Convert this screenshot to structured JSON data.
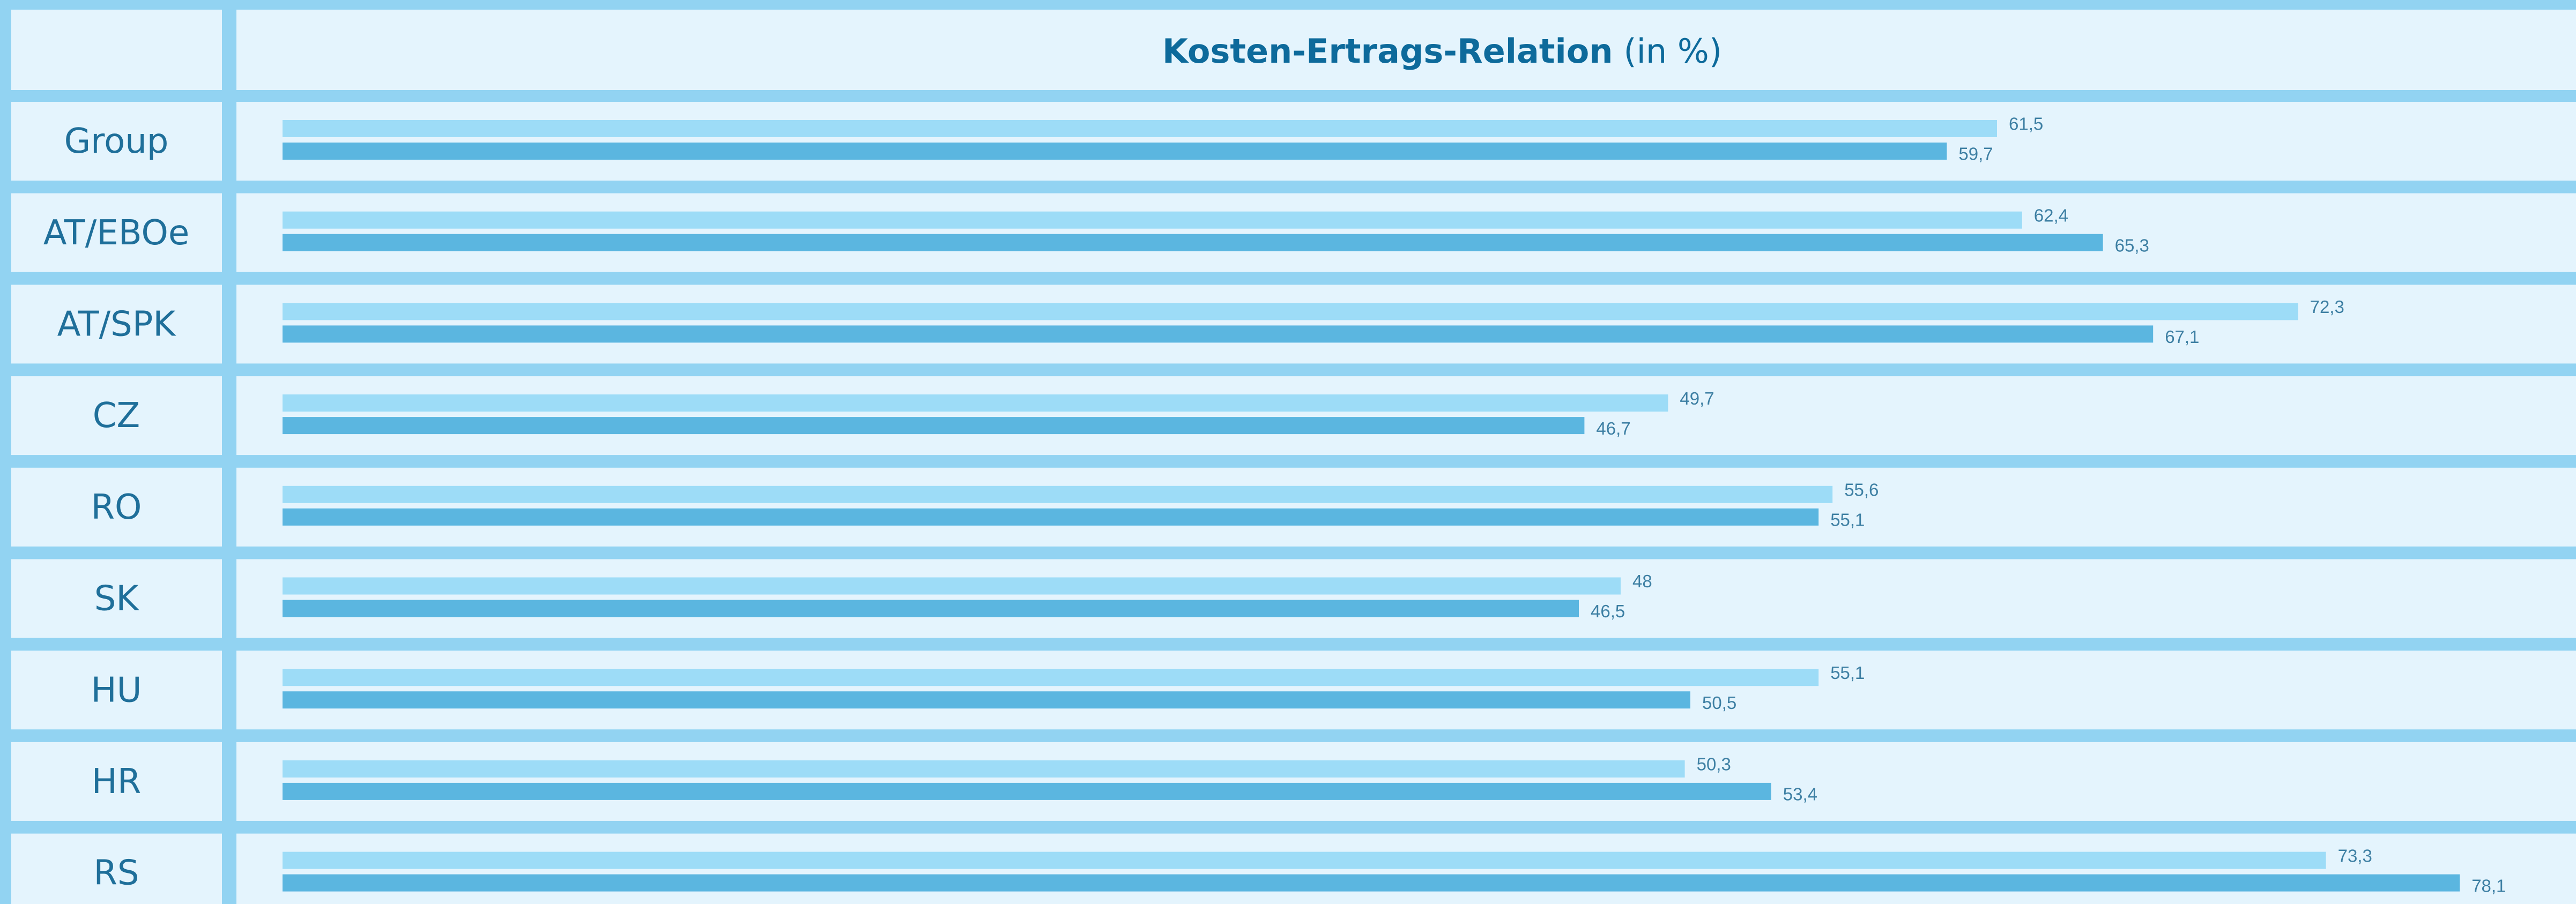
{
  "chart_data": {
    "type": "bar",
    "orientation": "horizontal",
    "title": "Kosten-Ertrags-Relation",
    "title_suffix": "(in %)",
    "categories": [
      "Group",
      "AT/EBOe",
      "AT/SPK",
      "CZ",
      "RO",
      "SK",
      "HU",
      "HR",
      "RS"
    ],
    "series": [
      {
        "color": "#9ddcf7",
        "values": [
          61.5,
          62.4,
          72.3,
          49.7,
          55.6,
          48,
          55.1,
          50.3,
          73.3
        ],
        "value_labels": [
          "61,5",
          "62,4",
          "72,3",
          "49,7",
          "55,6",
          "48",
          "55,1",
          "50,3",
          "73,3"
        ]
      },
      {
        "color": "#5bb6e0",
        "values": [
          59.7,
          65.3,
          67.1,
          46.7,
          55.1,
          46.5,
          50.5,
          53.4,
          78.1
        ],
        "value_labels": [
          "59,7",
          "65,3",
          "67,1",
          "46,7",
          "55,1",
          "46,5",
          "50,5",
          "53,4",
          "78,1"
        ]
      }
    ]
  }
}
